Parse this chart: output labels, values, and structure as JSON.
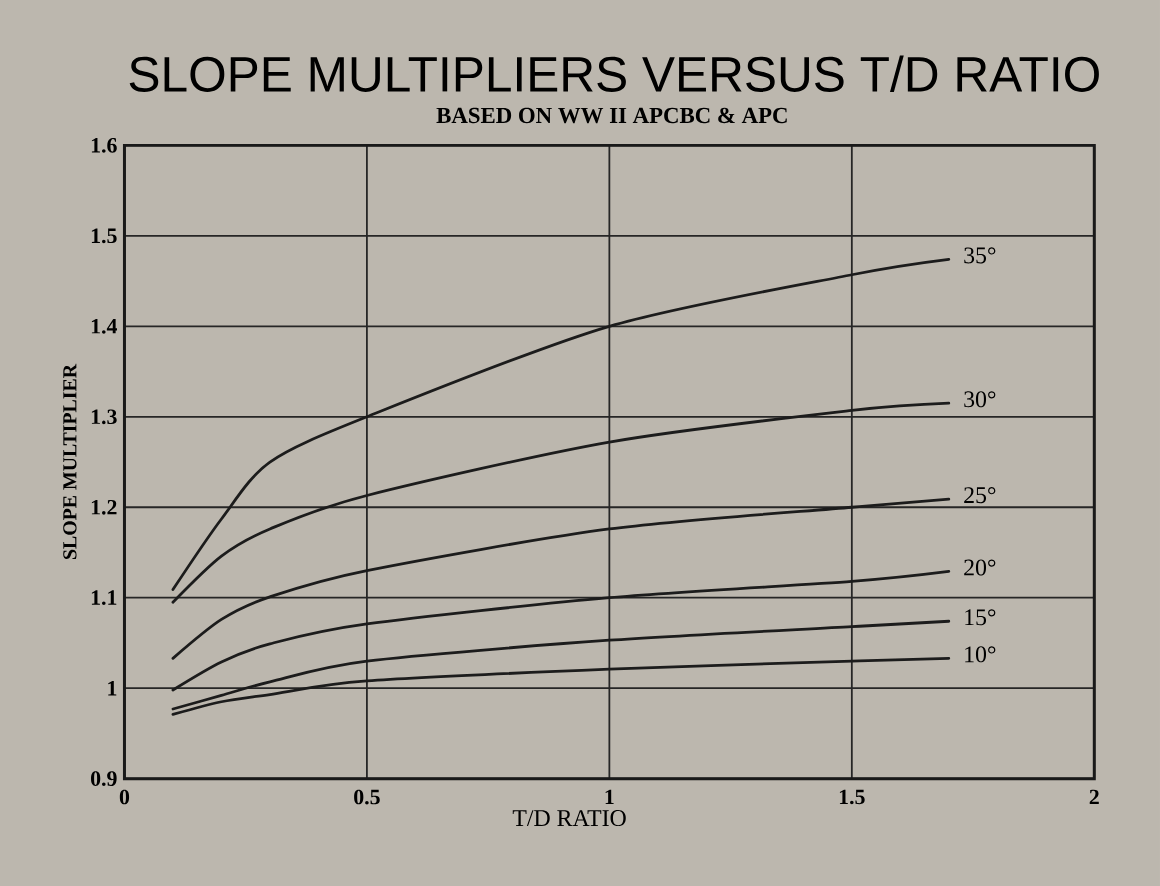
{
  "chart_data": {
    "type": "line",
    "title": "SLOPE MULTIPLIERS VERSUS T/D RATIO",
    "subtitle": "BASED ON WW II APCBC & APC",
    "xlabel": "T/D RATIO",
    "ylabel": "SLOPE MULTIPLIER",
    "x": [
      0.1,
      0.2,
      0.3,
      0.5,
      1.0,
      1.5,
      1.7
    ],
    "series": [
      {
        "name": "35°",
        "color": "#1c1c1c",
        "values": [
          1.109,
          1.187,
          1.25,
          1.3,
          1.4,
          1.457,
          1.474
        ]
      },
      {
        "name": "30°",
        "color": "#1c1c1c",
        "values": [
          1.095,
          1.146,
          1.176,
          1.213,
          1.272,
          1.307,
          1.315
        ]
      },
      {
        "name": "25°",
        "color": "#1c1c1c",
        "values": [
          1.033,
          1.076,
          1.101,
          1.13,
          1.176,
          1.2,
          1.209
        ]
      },
      {
        "name": "20°",
        "color": "#1c1c1c",
        "values": [
          0.998,
          1.029,
          1.049,
          1.071,
          1.1,
          1.118,
          1.129
        ]
      },
      {
        "name": "15°",
        "color": "#1c1c1c",
        "values": [
          0.977,
          0.992,
          1.007,
          1.03,
          1.053,
          1.068,
          1.074
        ]
      },
      {
        "name": "10°",
        "color": "#1c1c1c",
        "values": [
          0.971,
          0.985,
          0.993,
          1.008,
          1.021,
          1.03,
          1.033
        ]
      }
    ],
    "xlim": [
      0,
      2
    ],
    "ylim": [
      0.9,
      1.6
    ],
    "xticks": [
      0,
      0.5,
      1,
      1.5,
      2
    ],
    "yticks": [
      0.9,
      1,
      1.1,
      1.2,
      1.3,
      1.4,
      1.5,
      1.6
    ],
    "grid": true
  }
}
